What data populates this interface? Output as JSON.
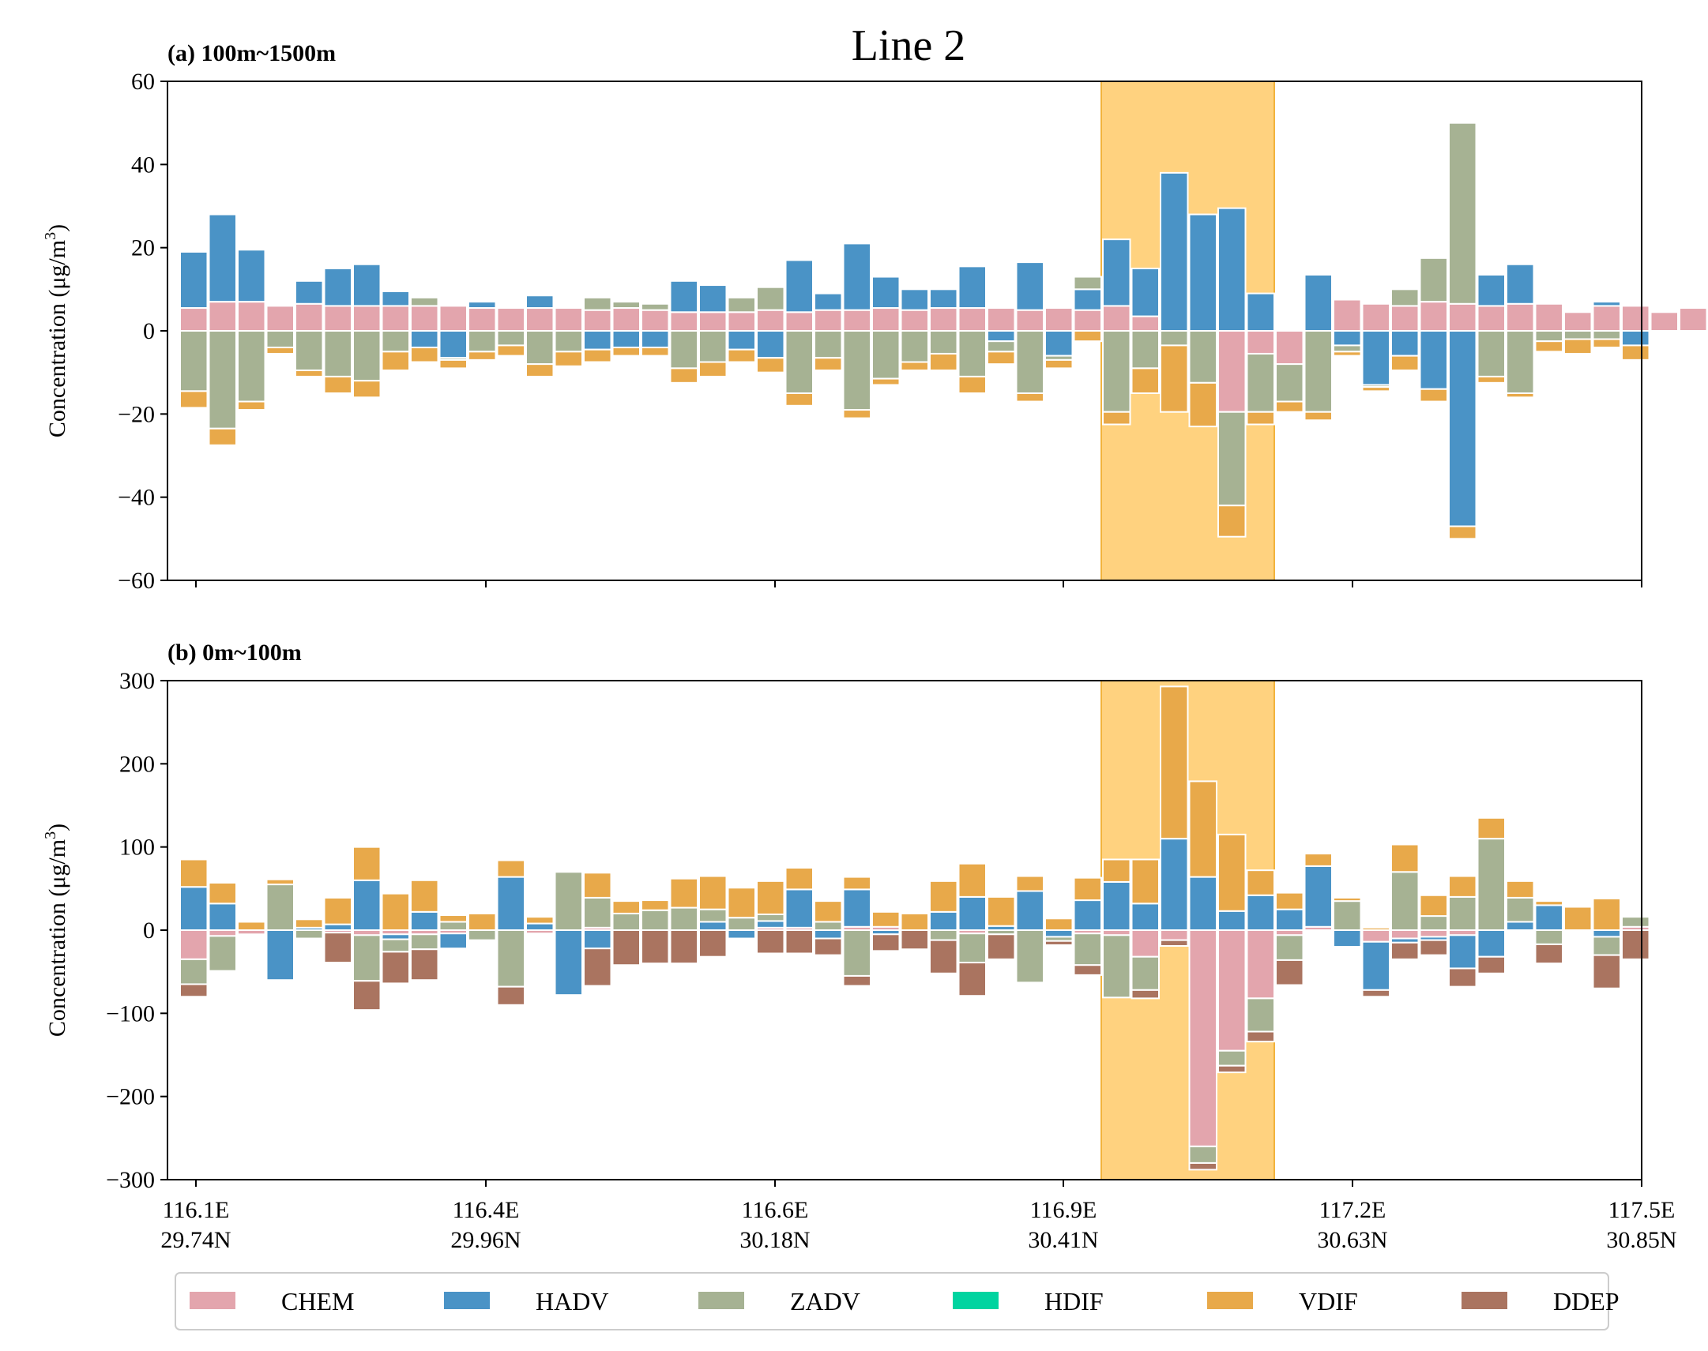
{
  "title": "Line 2",
  "legend": {
    "placement": "bottom",
    "items": [
      {
        "name": "CHEM",
        "color": "#e3a5ad"
      },
      {
        "name": "HADV",
        "color": "#4a93c6"
      },
      {
        "name": "ZADV",
        "color": "#a6b293"
      },
      {
        "name": "HDIF",
        "color": "#00d4a0"
      },
      {
        "name": "VDIF",
        "color": "#e8a94a"
      },
      {
        "name": "DDEP",
        "color": "#aa7460"
      }
    ]
  },
  "chart_data": [
    {
      "type": "bar",
      "stacked": true,
      "panel_label": "(a) 100m~1500m",
      "ylabel": "Concentration (μg/m3)",
      "ylabel_unit_superscript": "3",
      "ylim": [
        -60,
        60
      ],
      "yticks": [
        -60,
        -40,
        -20,
        0,
        20,
        40,
        60
      ],
      "xticks": [
        {
          "lon": "116.1E",
          "lat": "29.74N"
        },
        {
          "lon": "116.4E",
          "lat": "29.96N"
        },
        {
          "lon": "116.6E",
          "lat": "30.18N"
        },
        {
          "lon": "116.9E",
          "lat": "30.41N"
        },
        {
          "lon": "117.2E",
          "lat": "30.63N"
        },
        {
          "lon": "117.5E",
          "lat": "30.85N"
        }
      ],
      "highlight_bins": [
        32,
        37
      ],
      "series": [
        {
          "name": "CHEM",
          "values": [
            5.5,
            7,
            7,
            6,
            6.5,
            6,
            6,
            6,
            6,
            6,
            5.5,
            5.5,
            5.5,
            5.5,
            5,
            5.5,
            5,
            4.5,
            4.5,
            4.5,
            5,
            4.5,
            5,
            5,
            5.5,
            5,
            5.5,
            5.5,
            5.5,
            5,
            5.5,
            5,
            6,
            3.5,
            0,
            0,
            -19.5,
            -5.5,
            -8,
            0,
            7.5,
            6.5,
            6,
            7,
            6.5,
            6,
            6.5,
            6.5,
            4.5,
            6,
            6,
            4.5,
            5.5,
            6.5
          ]
        },
        {
          "name": "HADV",
          "values": [
            13.5,
            21,
            12.5,
            0,
            5.5,
            9,
            10,
            3.5,
            -4,
            -6.5,
            1.5,
            0,
            3,
            0,
            -4.5,
            -4,
            -4,
            7.5,
            6.5,
            -4.5,
            -6.5,
            12.5,
            4,
            16,
            7.5,
            5,
            4.5,
            10,
            -2.5,
            11.5,
            -6,
            5,
            16,
            11.5,
            38,
            28,
            29.5,
            9,
            0,
            13.5,
            -3.5,
            -13,
            -6,
            -14,
            -47,
            7.5,
            9.5,
            0,
            0,
            1,
            -3.5,
            0,
            0,
            0
          ]
        },
        {
          "name": "ZADV",
          "values": [
            -14.5,
            -23.5,
            -17,
            -4,
            -9.5,
            -11,
            -12,
            -5,
            2,
            -0.5,
            -5,
            -3.5,
            -8,
            -5,
            3,
            1.5,
            1.5,
            -9,
            -7.5,
            3.5,
            5.5,
            -15,
            -6.5,
            -19,
            -11.5,
            -7.5,
            -5.5,
            -11,
            -2.5,
            -15,
            -1,
            3,
            -19.5,
            -9,
            -3.5,
            -12.5,
            -22.5,
            -14,
            -9,
            -19.5,
            -1.5,
            -0.5,
            4,
            10.5,
            43.5,
            -11,
            -15,
            -2.5,
            -2,
            -2,
            0,
            0,
            0,
            0
          ]
        },
        {
          "name": "HDIF",
          "values": [
            0,
            0,
            0,
            0,
            0,
            0,
            0,
            0,
            0,
            0,
            0,
            0,
            0,
            0,
            0,
            0,
            0,
            0,
            0,
            0,
            0,
            0,
            0,
            0,
            0,
            0,
            0,
            0,
            0,
            0,
            0,
            0,
            0,
            0,
            0,
            0,
            0,
            0,
            0,
            0,
            0,
            0,
            0,
            0,
            0,
            0,
            0,
            0,
            0,
            0,
            0,
            0,
            0,
            0,
            0
          ]
        },
        {
          "name": "VDIF",
          "values": [
            -4,
            -4,
            -2,
            -1.5,
            -1.5,
            -4,
            -4,
            -4.5,
            -3.5,
            -2,
            -2,
            -2.5,
            -3,
            -3.5,
            -3,
            -2,
            -2,
            -3.5,
            -3.5,
            -3,
            -3.5,
            -3,
            -3,
            -2,
            -1.5,
            -2,
            -4,
            -4,
            -3,
            -2,
            -2,
            -2.5,
            -3,
            -6,
            -16,
            -10.5,
            -7.5,
            -3,
            -2.5,
            -2,
            -1,
            -1,
            -3.5,
            -3,
            -3,
            -1.5,
            -1,
            -2.5,
            -3.5,
            -2,
            -3.5,
            0,
            0,
            0
          ]
        },
        {
          "name": "DDEP",
          "values": [
            0,
            0,
            0,
            0,
            0,
            0,
            0,
            0,
            0,
            0,
            0,
            0,
            0,
            0,
            0,
            0,
            0,
            0,
            0,
            0,
            0,
            0,
            0,
            0,
            0,
            0,
            0,
            0,
            0,
            0,
            0,
            0,
            0,
            0,
            0,
            0,
            0,
            0,
            0,
            0,
            0,
            0,
            0,
            0,
            0,
            0,
            0,
            0,
            0,
            0,
            0,
            0,
            0,
            0,
            0
          ]
        }
      ]
    },
    {
      "type": "bar",
      "stacked": true,
      "panel_label": "(b) 0m~100m",
      "ylabel": "Concentration (μg/m3)",
      "ylabel_unit_superscript": "3",
      "ylim": [
        -300,
        300
      ],
      "yticks": [
        -300,
        -200,
        -100,
        0,
        100,
        200,
        300
      ],
      "xticks": [
        {
          "lon": "116.1E",
          "lat": "29.74N"
        },
        {
          "lon": "116.4E",
          "lat": "29.96N"
        },
        {
          "lon": "116.6E",
          "lat": "30.18N"
        },
        {
          "lon": "116.9E",
          "lat": "30.41N"
        },
        {
          "lon": "117.2E",
          "lat": "30.63N"
        },
        {
          "lon": "117.5E",
          "lat": "30.85N"
        }
      ],
      "highlight_bins": [
        32,
        37
      ],
      "series": [
        {
          "name": "CHEM",
          "values": [
            -35,
            -7,
            -5,
            0,
            0,
            -3,
            -6,
            -5,
            -5,
            -4,
            0,
            0,
            -4,
            0,
            3,
            0,
            0,
            0,
            0,
            0,
            3,
            3,
            0,
            4,
            4,
            0,
            0,
            -4,
            0,
            0,
            0,
            -4,
            -6,
            -32,
            -12,
            -260,
            -145,
            -82,
            -6,
            4,
            0,
            -14,
            -10,
            -8,
            -6,
            0,
            0,
            0,
            0,
            0,
            4,
            0,
            0,
            0
          ]
        },
        {
          "name": "HADV",
          "values": [
            52,
            32,
            0,
            -60,
            3,
            7,
            60,
            -6,
            22,
            -18,
            0,
            64,
            8,
            -78,
            -22,
            0,
            0,
            0,
            10,
            -10,
            8,
            46,
            -10,
            45,
            -5,
            0,
            22,
            40,
            5,
            47,
            -8,
            36,
            58,
            32,
            110,
            64,
            23,
            42,
            25,
            73,
            -20,
            -58,
            -5,
            -4,
            -40,
            -32,
            10,
            30,
            0,
            -8,
            0,
            0,
            0,
            0
          ]
        },
        {
          "name": "ZADV",
          "values": [
            -30,
            -42,
            0,
            55,
            -10,
            0,
            -55,
            -15,
            -18,
            10,
            -12,
            -68,
            0,
            70,
            36,
            20,
            24,
            27,
            15,
            15,
            8,
            0,
            10,
            -55,
            0,
            0,
            -12,
            -35,
            -5,
            -63,
            -5,
            -38,
            -75,
            -40,
            0,
            -20,
            -18,
            -40,
            -30,
            0,
            35,
            0,
            70,
            17,
            40,
            110,
            29,
            -17,
            0,
            -22,
            12,
            0,
            0,
            0
          ]
        },
        {
          "name": "HDIF",
          "values": [
            0,
            0,
            0,
            0,
            0,
            0,
            0,
            0,
            0,
            0,
            0,
            0,
            0,
            0,
            0,
            0,
            0,
            0,
            0,
            0,
            0,
            0,
            0,
            0,
            0,
            0,
            0,
            0,
            0,
            0,
            0,
            0,
            0,
            0,
            0,
            0,
            0,
            0,
            0,
            0,
            0,
            0,
            0,
            0,
            0,
            0,
            0,
            0,
            0,
            0,
            0,
            0,
            0,
            0,
            0
          ]
        },
        {
          "name": "VDIF",
          "values": [
            33,
            25,
            10,
            6,
            10,
            32,
            40,
            44,
            38,
            8,
            20,
            20,
            8,
            0,
            30,
            15,
            12,
            35,
            40,
            36,
            40,
            26,
            25,
            15,
            18,
            20,
            37,
            40,
            35,
            18,
            14,
            27,
            27,
            53,
            183,
            115,
            92,
            30,
            20,
            15,
            4,
            3,
            33,
            25,
            25,
            25,
            20,
            5,
            28,
            38,
            0,
            0,
            0,
            0
          ]
        },
        {
          "name": "DDEP",
          "values": [
            -15,
            0,
            0,
            0,
            0,
            -36,
            -35,
            -38,
            -37,
            0,
            0,
            -22,
            0,
            0,
            -45,
            -42,
            -40,
            -40,
            -32,
            0,
            -28,
            -28,
            -20,
            -12,
            -20,
            -23,
            -40,
            -40,
            -30,
            0,
            -5,
            -12,
            0,
            -10,
            -7,
            -8,
            -8,
            -12,
            -30,
            0,
            0,
            -8,
            -20,
            -18,
            -22,
            -20,
            0,
            -23,
            0,
            -40,
            -35,
            0,
            0,
            0
          ]
        }
      ]
    }
  ]
}
